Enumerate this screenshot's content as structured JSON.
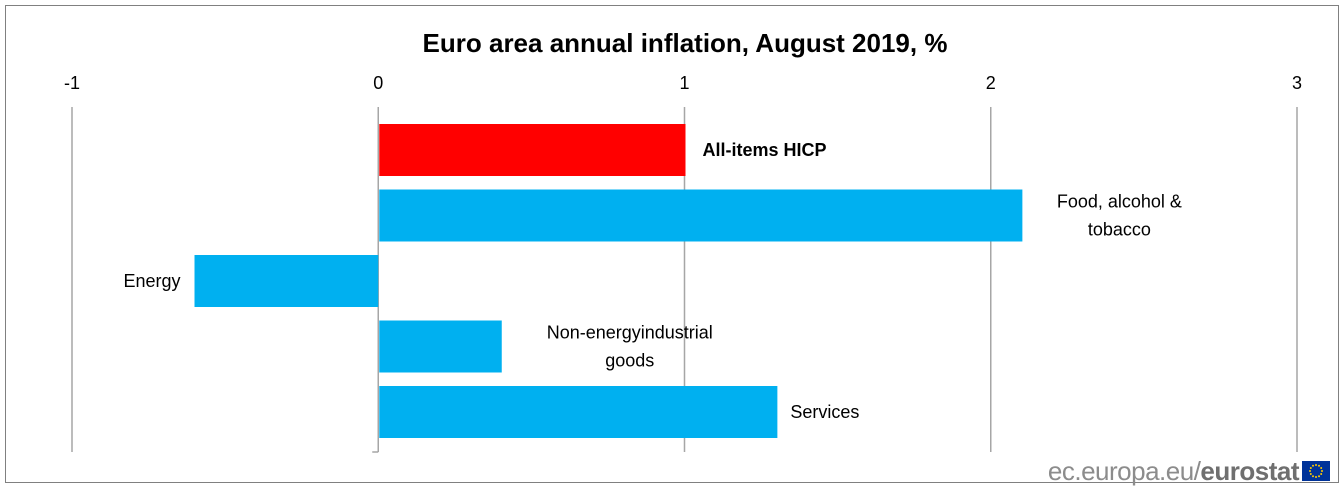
{
  "chart_data": {
    "type": "bar",
    "orientation": "horizontal",
    "title": "Euro area annual inflation, August 2019, %",
    "xlim": [
      -1,
      3
    ],
    "x_ticks": [
      "-1",
      "0",
      "1",
      "2",
      "3"
    ],
    "grid": "vertical",
    "categories": [
      "All-items HICP",
      "Food, alcohol & tobacco",
      "Energy",
      "Non-energy industrial goods",
      "Services"
    ],
    "label_lines": [
      [
        "All-items HICP"
      ],
      [
        "Food, alcohol &",
        "tobacco"
      ],
      [
        "Energy"
      ],
      [
        "Non-energyindustrial",
        "goods"
      ],
      [
        "Services"
      ]
    ],
    "values": [
      1.0,
      2.1,
      -0.6,
      0.4,
      1.3
    ],
    "colors": [
      "#ff0000",
      "#00b0f0",
      "#00b0f0",
      "#00b0f0",
      "#00b0f0"
    ],
    "highlight": "All-items HICP"
  },
  "footer": {
    "site": "ec.europa.eu/",
    "brand": "eurostat",
    "flag_icon": "eu-flag-icon"
  },
  "colors": {
    "highlight_bar": "#ff0000",
    "component_bar": "#00b0f0",
    "gridline": "#a6a6a6",
    "footer_text": "#8c8c8c",
    "eu_blue": "#003399",
    "eu_gold": "#ffcc00"
  }
}
